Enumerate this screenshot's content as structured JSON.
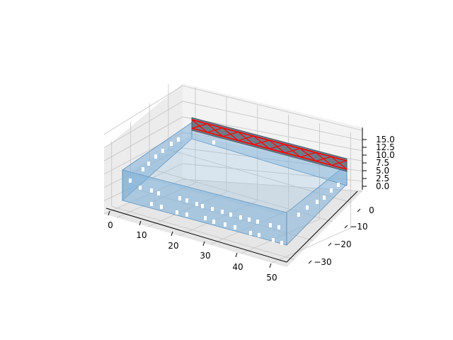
{
  "chart_data": {
    "type": "3d-surface",
    "title": "",
    "xlabel": "",
    "ylabel": "",
    "zlabel": "",
    "x_ticks": [
      "0",
      "10",
      "20",
      "30",
      "40",
      "50"
    ],
    "y_ticks": [
      "0",
      "−10",
      "−20",
      "−30"
    ],
    "z_ticks": [
      "0.0",
      "2.5",
      "5.0",
      "7.5",
      "10.0",
      "12.5",
      "15.0"
    ],
    "xlim": [
      -3,
      53
    ],
    "ylim": [
      -38,
      2
    ],
    "zlim": [
      -1,
      16
    ],
    "grid": true,
    "colors": {
      "pane": "#f2f2f2",
      "grid": "#c8c8c8",
      "walls": "#7fb0d8",
      "walls_edge": "#5b8fbd",
      "truss_fill": "#6e7a86",
      "truss_members": "#ff0000"
    },
    "series": [
      {
        "x": [
          0,
          50
        ],
        "y": [
          0,
          -35
        ],
        "z": [
          0,
          4
        ]
      },
      {
        "x": [
          13,
          38
        ],
        "y": [
          0,
          0
        ],
        "z": [
          15,
          14
        ]
      }
    ]
  }
}
